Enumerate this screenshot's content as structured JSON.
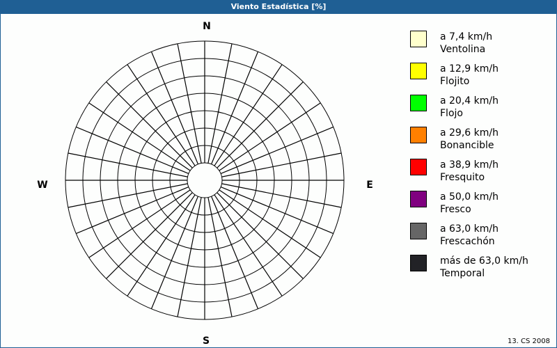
{
  "header": {
    "title": "Viento Estadística [%]"
  },
  "chart_data": {
    "type": "polar-windrose",
    "title": "Viento Estadística [%]",
    "directions": [
      "N",
      "E",
      "S",
      "W"
    ],
    "sectors": 32,
    "rings": 8,
    "series": [],
    "legend": [
      {
        "range": "a 7,4 km/h",
        "name": "Ventolina",
        "color": "#ffffcc"
      },
      {
        "range": "a 12,9 km/h",
        "name": "Flojito",
        "color": "#ffff00"
      },
      {
        "range": "a 20,4 km/h",
        "name": "Flojo",
        "color": "#00ff00"
      },
      {
        "range": "a 29,6 km/h",
        "name": "Bonancible",
        "color": "#ff8000"
      },
      {
        "range": "a 38,9 km/h",
        "name": "Fresquito",
        "color": "#ff0000"
      },
      {
        "range": "a 50,0 km/h",
        "name": "Fresco",
        "color": "#800080"
      },
      {
        "range": "a 63,0 km/h",
        "name": "Frescachón",
        "color": "#666666"
      },
      {
        "range": "más de 63,0 km/h",
        "name": "Temporal",
        "color": "#222226"
      }
    ],
    "legend_position": "right"
  },
  "footer": {
    "text": "13. CS 2008"
  }
}
